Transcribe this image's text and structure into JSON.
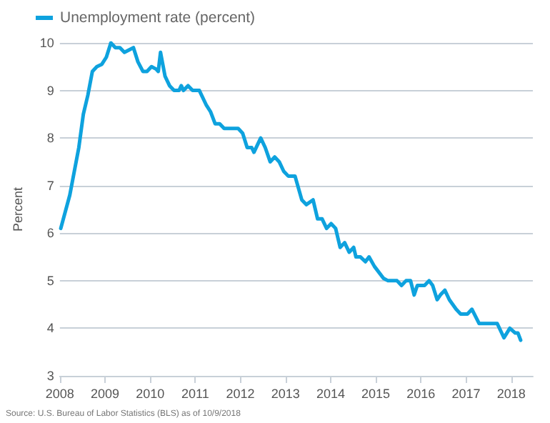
{
  "chart_data": {
    "type": "line",
    "ylabel": "Percent",
    "legend": "top left",
    "grid": "y",
    "marker": "none",
    "line_style": "solid",
    "xlim": [
      2008,
      2018.48
    ],
    "xticks": [
      2008,
      2009,
      2010,
      2011,
      2012,
      2013,
      2014,
      2015,
      2016,
      2017,
      2018
    ],
    "ylim": [
      3,
      10
    ],
    "yticks": [
      3,
      4,
      5,
      6,
      7,
      8,
      9,
      10
    ],
    "annotations": [
      "Source: U.S. Bureau of Labor Statistics (BLS) as of 10/9/2018"
    ],
    "series": [
      {
        "name": "Unemployment rate (percent)",
        "color": "#0ea2de",
        "x": [
          2008.02,
          2008.22,
          2008.42,
          2008.52,
          2008.62,
          2008.72,
          2008.82,
          2008.93,
          2009.03,
          2009.13,
          2009.23,
          2009.33,
          2009.43,
          2009.53,
          2009.63,
          2009.73,
          2009.84,
          2009.93,
          2010.03,
          2010.13,
          2010.18,
          2010.23,
          2010.33,
          2010.43,
          2010.53,
          2010.64,
          2010.69,
          2010.74,
          2010.84,
          2010.94,
          2011.09,
          2011.24,
          2011.34,
          2011.44,
          2011.54,
          2011.64,
          2011.95,
          2012.05,
          2012.15,
          2012.25,
          2012.3,
          2012.45,
          2012.55,
          2012.66,
          2012.76,
          2012.86,
          2012.96,
          2013.06,
          2013.21,
          2013.36,
          2013.46,
          2013.61,
          2013.71,
          2013.81,
          2013.91,
          2014.01,
          2014.11,
          2014.21,
          2014.31,
          2014.41,
          2014.51,
          2014.56,
          2014.66,
          2014.77,
          2014.85,
          2014.97,
          2015.17,
          2015.27,
          2015.47,
          2015.57,
          2015.67,
          2015.77,
          2015.85,
          2015.92,
          2016.08,
          2016.18,
          2016.26,
          2016.36,
          2016.43,
          2016.53,
          2016.63,
          2016.78,
          2016.88,
          2017.03,
          2017.13,
          2017.29,
          2017.69,
          2017.84,
          2017.97,
          2018.09,
          2018.15,
          2018.21
        ],
        "values": [
          6.1,
          6.8,
          7.8,
          8.5,
          8.9,
          9.4,
          9.5,
          9.55,
          9.7,
          10.0,
          9.9,
          9.9,
          9.8,
          9.85,
          9.9,
          9.6,
          9.4,
          9.4,
          9.5,
          9.45,
          9.4,
          9.8,
          9.3,
          9.1,
          9.0,
          9.0,
          9.1,
          9.0,
          9.1,
          9.0,
          9.0,
          8.7,
          8.55,
          8.3,
          8.3,
          8.2,
          8.2,
          8.1,
          7.8,
          7.8,
          7.7,
          8.0,
          7.8,
          7.5,
          7.6,
          7.5,
          7.3,
          7.2,
          7.2,
          6.7,
          6.6,
          6.7,
          6.3,
          6.3,
          6.1,
          6.2,
          6.1,
          5.7,
          5.8,
          5.6,
          5.7,
          5.5,
          5.5,
          5.4,
          5.5,
          5.3,
          5.05,
          5.0,
          5.0,
          4.9,
          5.0,
          5.0,
          4.7,
          4.9,
          4.9,
          5.0,
          4.9,
          4.6,
          4.7,
          4.8,
          4.6,
          4.4,
          4.3,
          4.3,
          4.4,
          4.1,
          4.1,
          3.8,
          4.0,
          3.9,
          3.9,
          3.75
        ]
      }
    ]
  }
}
